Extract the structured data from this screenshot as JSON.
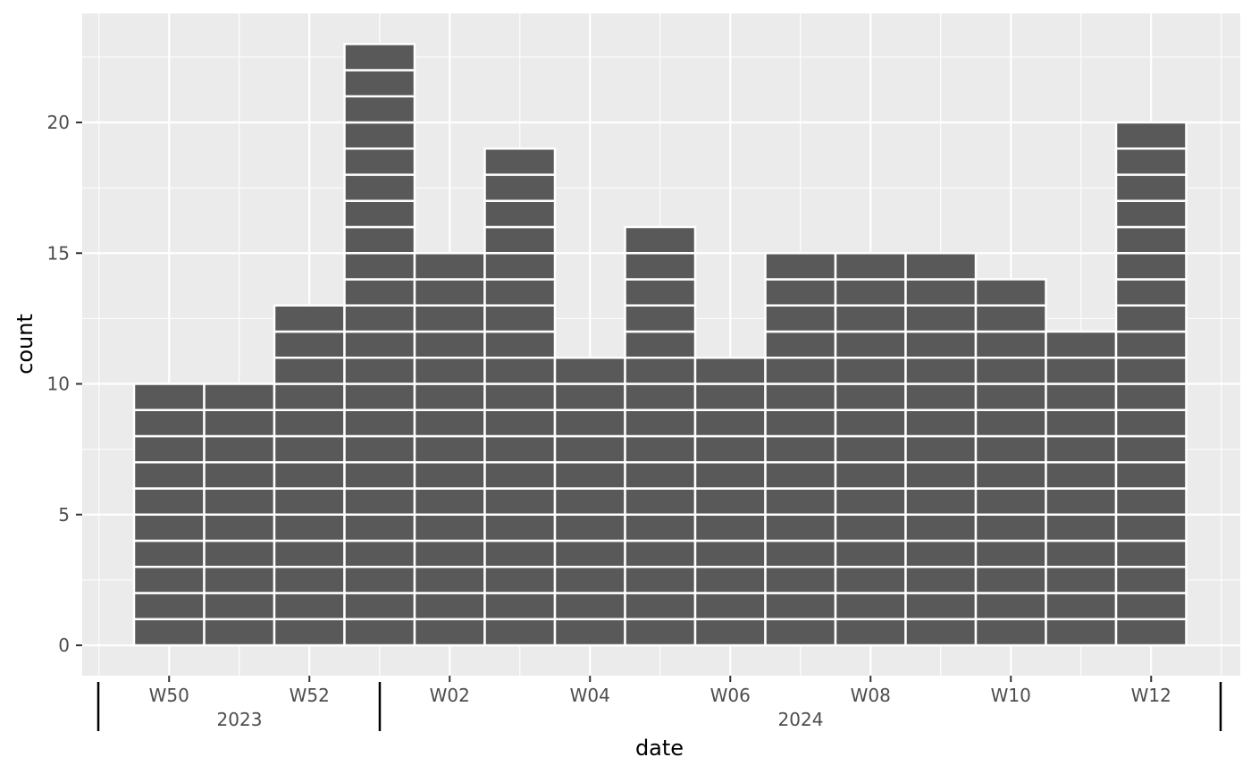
{
  "chart_data": {
    "type": "bar",
    "title": "",
    "xlabel": "date",
    "ylabel": "count",
    "ylim": [
      0,
      24
    ],
    "yticks": [
      0,
      5,
      10,
      15,
      20
    ],
    "grid": true,
    "categories": [
      "2023-W50",
      "2023-W51",
      "2023-W52",
      "2024-W01",
      "2024-W02",
      "2024-W03",
      "2024-W04",
      "2024-W05",
      "2024-W06",
      "2024-W07",
      "2024-W08",
      "2024-W09",
      "2024-W10",
      "2024-W11",
      "2024-W12"
    ],
    "values": [
      10,
      10,
      13,
      23,
      15,
      19,
      11,
      16,
      11,
      15,
      15,
      15,
      14,
      12,
      20
    ],
    "x_tick_labels": [
      "W50",
      "W52",
      "W02",
      "W04",
      "W06",
      "W08",
      "W10",
      "W12"
    ],
    "x_year_labels": [
      "2023",
      "2024"
    ]
  }
}
